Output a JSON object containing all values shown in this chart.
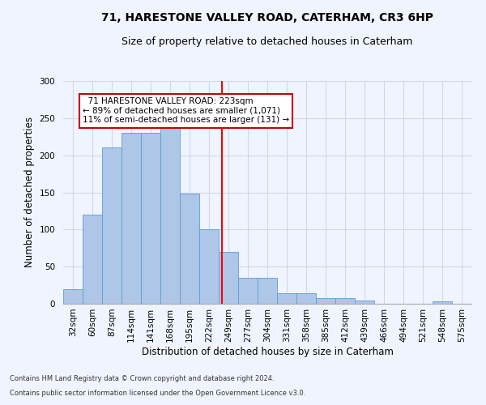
{
  "title": "71, HARESTONE VALLEY ROAD, CATERHAM, CR3 6HP",
  "subtitle": "Size of property relative to detached houses in Caterham",
  "xlabel": "Distribution of detached houses by size in Caterham",
  "ylabel": "Number of detached properties",
  "bins": [
    "32sqm",
    "60sqm",
    "87sqm",
    "114sqm",
    "141sqm",
    "168sqm",
    "195sqm",
    "222sqm",
    "249sqm",
    "277sqm",
    "304sqm",
    "331sqm",
    "358sqm",
    "385sqm",
    "412sqm",
    "439sqm",
    "466sqm",
    "494sqm",
    "521sqm",
    "548sqm",
    "575sqm"
  ],
  "values": [
    20,
    120,
    210,
    230,
    230,
    250,
    148,
    100,
    70,
    35,
    35,
    14,
    14,
    8,
    8,
    4,
    0,
    0,
    0,
    3,
    0
  ],
  "bar_color": "#aec6e8",
  "bar_edge_color": "#5a9fd4",
  "grid_color": "#d0d8e8",
  "background_color": "#f0f4ff",
  "red_line_x": 7.67,
  "annotation_text": "  71 HARESTONE VALLEY ROAD: 223sqm  \n← 89% of detached houses are smaller (1,071)\n11% of semi-detached houses are larger (131) →",
  "annotation_box_color": "#ffffff",
  "annotation_box_edge": "#cc0000",
  "footnote1": "Contains HM Land Registry data © Crown copyright and database right 2024.",
  "footnote2": "Contains public sector information licensed under the Open Government Licence v3.0.",
  "ylim": [
    0,
    300
  ],
  "title_fontsize": 10,
  "subtitle_fontsize": 9,
  "label_fontsize": 8.5,
  "tick_fontsize": 7.5,
  "annot_fontsize": 7.5
}
